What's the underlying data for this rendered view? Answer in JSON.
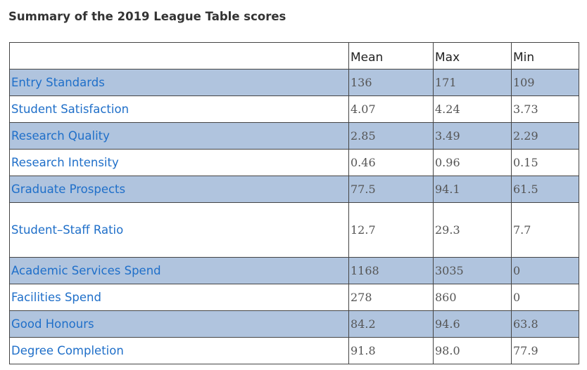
{
  "caption": "Summary of the 2019 League Table scores",
  "table": {
    "headers": [
      "",
      "Mean",
      "Max",
      "Min"
    ],
    "rows": [
      {
        "label": "Entry Standards",
        "mean": "136",
        "max": "171",
        "min": "109"
      },
      {
        "label": "Student Satisfaction",
        "mean": "4.07",
        "max": "4.24",
        "min": "3.73"
      },
      {
        "label": "Research Quality",
        "mean": "2.85",
        "max": "3.49",
        "min": "2.29"
      },
      {
        "label": "Research Intensity",
        "mean": "0.46",
        "max": "0.96",
        "min": "0.15"
      },
      {
        "label": "Graduate Prospects",
        "mean": "77.5",
        "max": "94.1",
        "min": "61.5"
      },
      {
        "label": "Student–Staff Ratio",
        "mean": "12.7",
        "max": "29.3",
        "min": "7.7"
      },
      {
        "label": "Academic Services Spend",
        "mean": "1168",
        "max": "3035",
        "min": "0"
      },
      {
        "label": "Facilities Spend",
        "mean": "278",
        "max": "860",
        "min": "0"
      },
      {
        "label": "Good Honours",
        "mean": "84.2",
        "max": "94.6",
        "min": "63.8"
      },
      {
        "label": "Degree Completion",
        "mean": "91.8",
        "max": "98.0",
        "min": "77.9"
      }
    ]
  },
  "colors": {
    "label_text": "#1f6fc9",
    "row_shade": "#b0c4de",
    "border": "#444444"
  }
}
